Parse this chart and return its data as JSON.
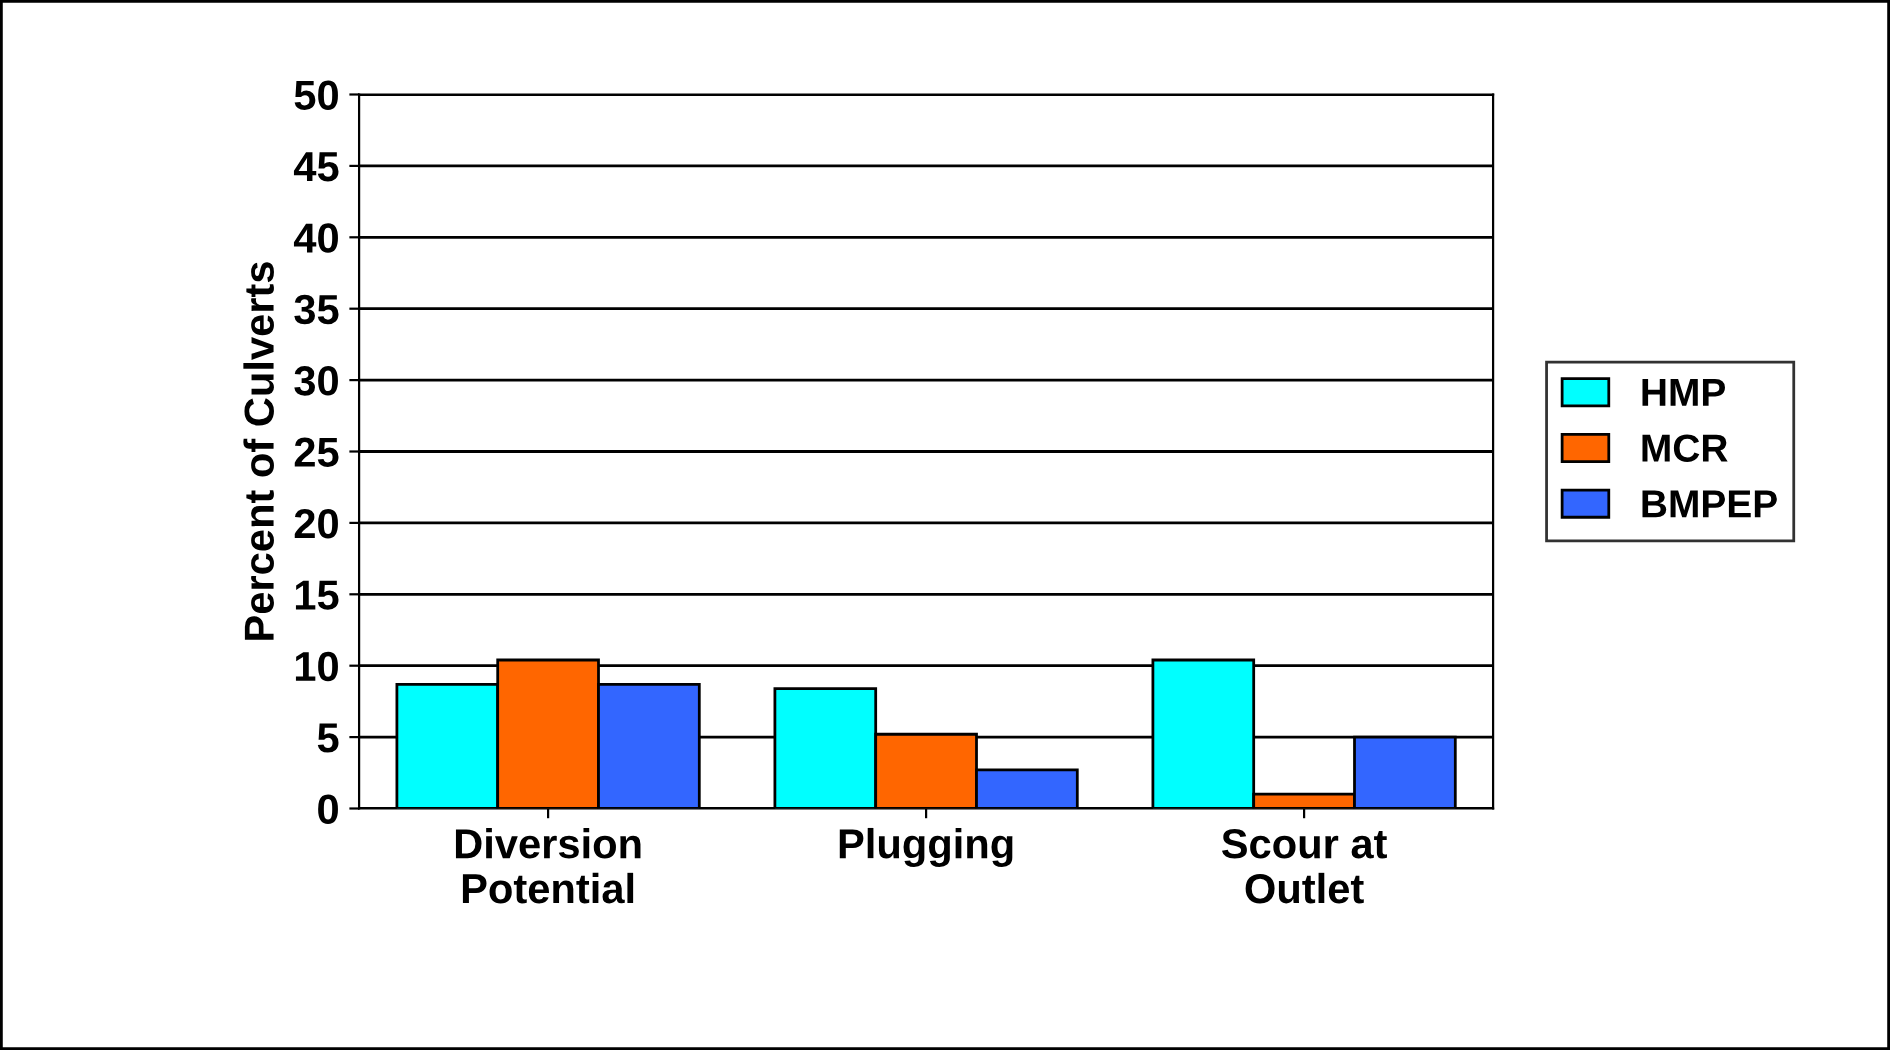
{
  "chart_data": {
    "type": "bar",
    "ylabel": "Percent of Culverts",
    "categories": [
      "Diversion\nPotential",
      "Plugging",
      "Scour at\nOutlet"
    ],
    "series": [
      {
        "name": "HMP",
        "color": "#00ffff",
        "values": [
          8.7,
          8.4,
          10.4
        ]
      },
      {
        "name": "MCR",
        "color": "#ff6600",
        "values": [
          10.4,
          5.2,
          1.0
        ]
      },
      {
        "name": "BMPEP",
        "color": "#3366ff",
        "values": [
          8.7,
          2.7,
          5.0
        ]
      }
    ],
    "ylim": [
      0,
      50
    ],
    "yticks": [
      0,
      5,
      10,
      15,
      20,
      25,
      30,
      35,
      40,
      45,
      50
    ],
    "grid": "y",
    "legend": "right"
  }
}
